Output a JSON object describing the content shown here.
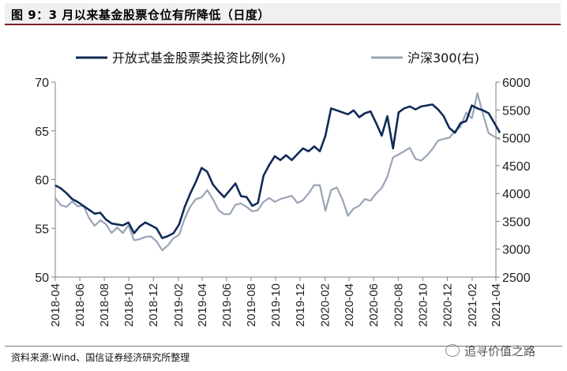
{
  "title": "图 9：3 月以来基金股票仓位有所降低（日度）",
  "source": "资料来源:Wind、国信证券经济研究所整理",
  "watermark": "追寻价值之路",
  "colors": {
    "series1": "#102a56",
    "series2": "#98a4b6",
    "title_rule": "#7a1f2a"
  },
  "chart_data": {
    "type": "line",
    "legend_position": "top",
    "grid": false,
    "x_ticks": [
      "2018-04",
      "2018-06",
      "2018-08",
      "2018-10",
      "2018-12",
      "2019-02",
      "2019-04",
      "2019-06",
      "2019-08",
      "2019-10",
      "2019-12",
      "2020-02",
      "2020-04",
      "2020-06",
      "2020-08",
      "2020-10",
      "2020-12",
      "2021-02",
      "2021-04"
    ],
    "x_range": [
      "2018-04",
      "2021-04"
    ],
    "y_left": {
      "ticks": [
        50,
        55,
        60,
        65,
        70
      ],
      "range": [
        50,
        70
      ]
    },
    "y_right": {
      "ticks": [
        2500,
        3000,
        3500,
        4000,
        4500,
        5000,
        5500,
        6000
      ],
      "range": [
        2500,
        6000
      ]
    },
    "series": [
      {
        "name": "开放式基金股票类投资比例(%)",
        "axis": "left",
        "points": [
          [
            "2018-04-01",
            59.4
          ],
          [
            "2018-04-15",
            59.1
          ],
          [
            "2018-04-29",
            58.6
          ],
          [
            "2018-05-13",
            58.0
          ],
          [
            "2018-05-27",
            57.7
          ],
          [
            "2018-06-10",
            57.3
          ],
          [
            "2018-06-24",
            56.9
          ],
          [
            "2018-07-08",
            56.5
          ],
          [
            "2018-07-22",
            56.6
          ],
          [
            "2018-08-05",
            55.9
          ],
          [
            "2018-08-19",
            55.5
          ],
          [
            "2018-09-02",
            55.4
          ],
          [
            "2018-09-16",
            55.3
          ],
          [
            "2018-09-30",
            55.6
          ],
          [
            "2018-10-14",
            54.5
          ],
          [
            "2018-10-28",
            55.2
          ],
          [
            "2018-11-11",
            55.6
          ],
          [
            "2018-11-25",
            55.3
          ],
          [
            "2018-12-09",
            55.0
          ],
          [
            "2018-12-23",
            54.0
          ],
          [
            "2019-01-06",
            54.2
          ],
          [
            "2019-01-20",
            54.5
          ],
          [
            "2019-02-03",
            55.4
          ],
          [
            "2019-02-17",
            57.2
          ],
          [
            "2019-03-03",
            58.6
          ],
          [
            "2019-03-17",
            59.8
          ],
          [
            "2019-03-31",
            61.2
          ],
          [
            "2019-04-14",
            60.8
          ],
          [
            "2019-04-28",
            59.5
          ],
          [
            "2019-05-12",
            58.8
          ],
          [
            "2019-05-26",
            58.2
          ],
          [
            "2019-06-09",
            58.9
          ],
          [
            "2019-06-23",
            59.6
          ],
          [
            "2019-07-07",
            58.3
          ],
          [
            "2019-07-21",
            58.2
          ],
          [
            "2019-08-04",
            57.3
          ],
          [
            "2019-08-18",
            57.6
          ],
          [
            "2019-09-01",
            60.4
          ],
          [
            "2019-09-15",
            61.5
          ],
          [
            "2019-09-29",
            62.4
          ],
          [
            "2019-10-13",
            62.0
          ],
          [
            "2019-10-27",
            62.5
          ],
          [
            "2019-11-10",
            62.0
          ],
          [
            "2019-11-24",
            62.6
          ],
          [
            "2019-12-08",
            63.2
          ],
          [
            "2019-12-22",
            62.9
          ],
          [
            "2020-01-05",
            63.4
          ],
          [
            "2020-01-19",
            62.9
          ],
          [
            "2020-02-02",
            64.5
          ],
          [
            "2020-02-16",
            67.3
          ],
          [
            "2020-03-01",
            67.1
          ],
          [
            "2020-03-15",
            66.9
          ],
          [
            "2020-03-29",
            66.7
          ],
          [
            "2020-04-12",
            67.1
          ],
          [
            "2020-04-26",
            66.4
          ],
          [
            "2020-05-10",
            66.8
          ],
          [
            "2020-05-24",
            67.0
          ],
          [
            "2020-06-07",
            65.8
          ],
          [
            "2020-06-21",
            64.5
          ],
          [
            "2020-07-05",
            66.5
          ],
          [
            "2020-07-19",
            63.2
          ],
          [
            "2020-08-02",
            66.9
          ],
          [
            "2020-08-16",
            67.3
          ],
          [
            "2020-08-30",
            67.5
          ],
          [
            "2020-09-13",
            67.2
          ],
          [
            "2020-09-27",
            67.5
          ],
          [
            "2020-10-11",
            67.6
          ],
          [
            "2020-10-25",
            67.7
          ],
          [
            "2020-11-08",
            67.2
          ],
          [
            "2020-11-22",
            66.5
          ],
          [
            "2020-12-06",
            65.3
          ],
          [
            "2020-12-20",
            64.8
          ],
          [
            "2021-01-03",
            65.8
          ],
          [
            "2021-01-17",
            66.0
          ],
          [
            "2021-01-31",
            67.6
          ],
          [
            "2021-02-14",
            67.3
          ],
          [
            "2021-02-28",
            67.1
          ],
          [
            "2021-03-14",
            66.8
          ],
          [
            "2021-03-28",
            65.8
          ],
          [
            "2021-04-11",
            64.8
          ]
        ]
      },
      {
        "name": "沪深300(右)",
        "axis": "right",
        "points": [
          [
            "2018-04-01",
            3920
          ],
          [
            "2018-04-15",
            3790
          ],
          [
            "2018-04-29",
            3760
          ],
          [
            "2018-05-13",
            3860
          ],
          [
            "2018-05-27",
            3770
          ],
          [
            "2018-06-10",
            3780
          ],
          [
            "2018-06-24",
            3560
          ],
          [
            "2018-07-08",
            3420
          ],
          [
            "2018-07-22",
            3520
          ],
          [
            "2018-08-05",
            3450
          ],
          [
            "2018-08-19",
            3290
          ],
          [
            "2018-09-02",
            3390
          ],
          [
            "2018-09-16",
            3290
          ],
          [
            "2018-09-30",
            3430
          ],
          [
            "2018-10-14",
            3160
          ],
          [
            "2018-10-28",
            3180
          ],
          [
            "2018-11-11",
            3220
          ],
          [
            "2018-11-25",
            3230
          ],
          [
            "2018-12-09",
            3140
          ],
          [
            "2018-12-23",
            2980
          ],
          [
            "2019-01-06",
            3070
          ],
          [
            "2019-01-20",
            3200
          ],
          [
            "2019-02-03",
            3260
          ],
          [
            "2019-02-17",
            3550
          ],
          [
            "2019-03-03",
            3770
          ],
          [
            "2019-03-17",
            3900
          ],
          [
            "2019-03-31",
            3930
          ],
          [
            "2019-04-14",
            4060
          ],
          [
            "2019-04-28",
            3900
          ],
          [
            "2019-05-12",
            3700
          ],
          [
            "2019-05-26",
            3630
          ],
          [
            "2019-06-09",
            3630
          ],
          [
            "2019-06-23",
            3800
          ],
          [
            "2019-07-07",
            3820
          ],
          [
            "2019-07-21",
            3760
          ],
          [
            "2019-08-04",
            3680
          ],
          [
            "2019-08-18",
            3700
          ],
          [
            "2019-09-01",
            3850
          ],
          [
            "2019-09-15",
            3920
          ],
          [
            "2019-09-29",
            3850
          ],
          [
            "2019-10-13",
            3900
          ],
          [
            "2019-10-27",
            3930
          ],
          [
            "2019-11-10",
            3960
          ],
          [
            "2019-11-24",
            3830
          ],
          [
            "2019-12-08",
            3880
          ],
          [
            "2019-12-22",
            4000
          ],
          [
            "2020-01-05",
            4150
          ],
          [
            "2020-01-19",
            4150
          ],
          [
            "2020-02-02",
            3690
          ],
          [
            "2020-02-16",
            4060
          ],
          [
            "2020-03-01",
            4110
          ],
          [
            "2020-03-15",
            3900
          ],
          [
            "2020-03-29",
            3600
          ],
          [
            "2020-04-12",
            3730
          ],
          [
            "2020-04-26",
            3780
          ],
          [
            "2020-05-10",
            3900
          ],
          [
            "2020-05-24",
            3870
          ],
          [
            "2020-06-07",
            4000
          ],
          [
            "2020-06-21",
            4100
          ],
          [
            "2020-07-05",
            4300
          ],
          [
            "2020-07-19",
            4650
          ],
          [
            "2020-08-02",
            4700
          ],
          [
            "2020-08-16",
            4760
          ],
          [
            "2020-08-30",
            4820
          ],
          [
            "2020-09-13",
            4620
          ],
          [
            "2020-09-27",
            4590
          ],
          [
            "2020-10-11",
            4680
          ],
          [
            "2020-10-25",
            4800
          ],
          [
            "2020-11-08",
            4950
          ],
          [
            "2020-11-22",
            4980
          ],
          [
            "2020-12-06",
            5000
          ],
          [
            "2020-12-20",
            5120
          ],
          [
            "2021-01-03",
            5200
          ],
          [
            "2021-01-17",
            5450
          ],
          [
            "2021-01-31",
            5350
          ],
          [
            "2021-02-14",
            5800
          ],
          [
            "2021-02-28",
            5420
          ],
          [
            "2021-03-14",
            5080
          ],
          [
            "2021-03-28",
            5020
          ],
          [
            "2021-04-11",
            4970
          ]
        ]
      }
    ]
  }
}
